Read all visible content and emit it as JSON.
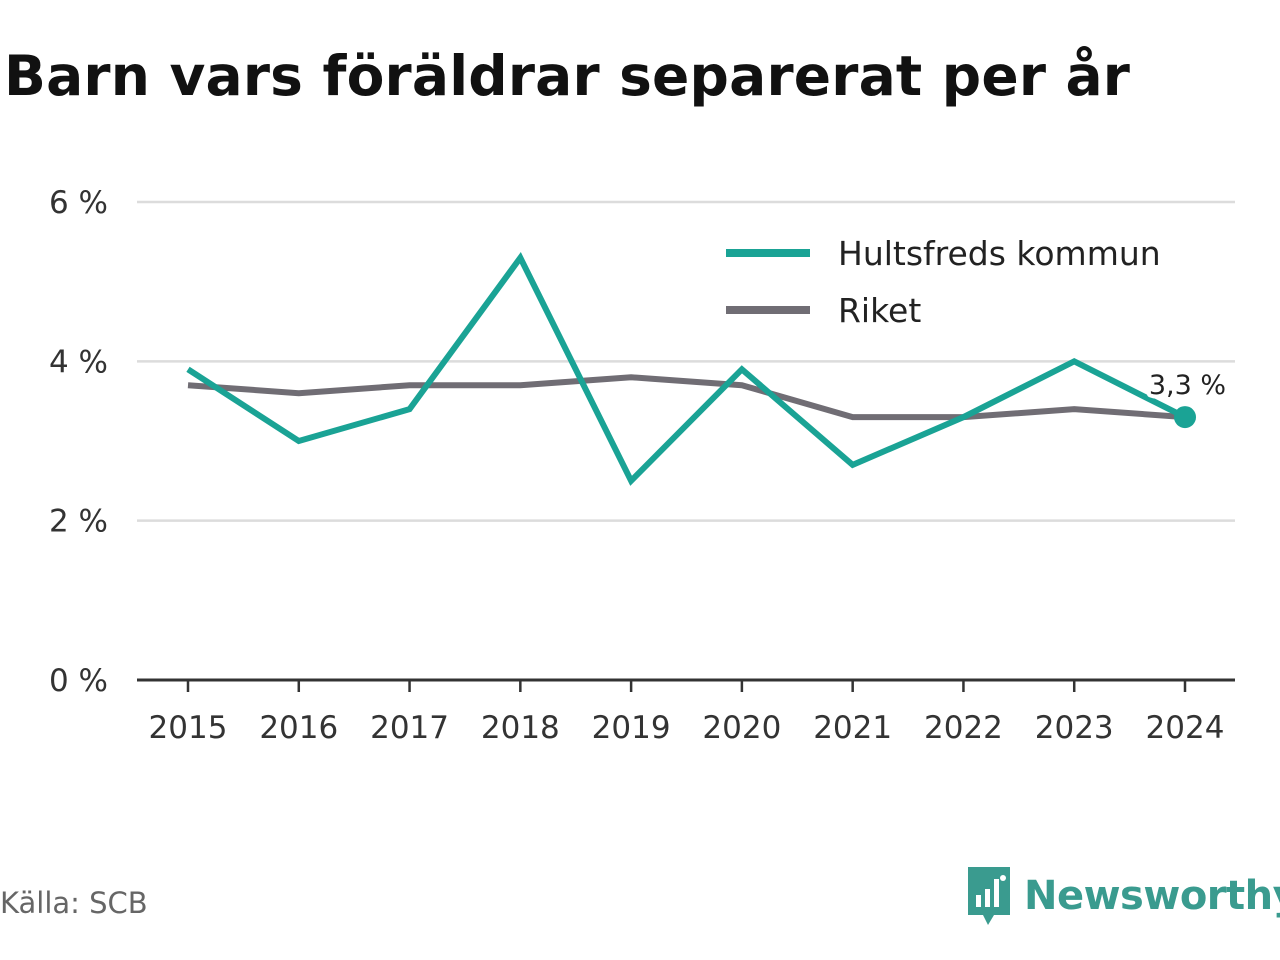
{
  "title": "Barn vars föräldrar separerat per år",
  "source": "Källa: SCB",
  "brand": "Newsworthy",
  "colors": {
    "hultsfred": "#1aa395",
    "riket": "#706d74",
    "brand": "#3a9b8f"
  },
  "chart_data": {
    "type": "line",
    "title": "Barn vars föräldrar separerat per år",
    "x": [
      "2015",
      "2016",
      "2017",
      "2018",
      "2019",
      "2020",
      "2021",
      "2022",
      "2023",
      "2024"
    ],
    "series": [
      {
        "name": "Hultsfreds kommun",
        "values": [
          3.9,
          3.0,
          3.4,
          5.3,
          2.5,
          3.9,
          2.7,
          3.3,
          4.0,
          3.3
        ]
      },
      {
        "name": "Riket",
        "values": [
          3.7,
          3.6,
          3.7,
          3.7,
          3.8,
          3.7,
          3.3,
          3.3,
          3.4,
          3.3
        ]
      }
    ],
    "ylim": [
      0,
      6
    ],
    "yticks": [
      0,
      2,
      4,
      6
    ],
    "ytick_labels": [
      "0 %",
      "2 %",
      "4 %",
      "6 %"
    ],
    "grid": true,
    "legend": "top-right",
    "end_label": "3,3 %"
  }
}
